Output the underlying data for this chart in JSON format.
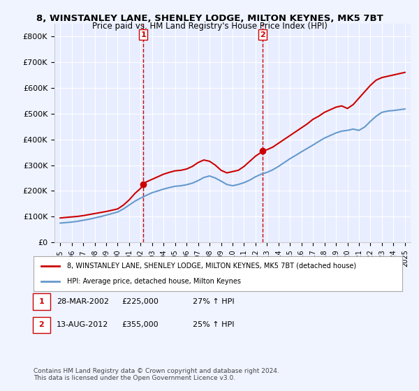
{
  "title": "8, WINSTANLEY LANE, SHENLEY LODGE, MILTON KEYNES, MK5 7BT",
  "subtitle": "Price paid vs. HM Land Registry's House Price Index (HPI)",
  "background_color": "#f0f4ff",
  "plot_bg_color": "#e8eeff",
  "legend_label_red": "8, WINSTANLEY LANE, SHENLEY LODGE, MILTON KEYNES, MK5 7BT (detached house)",
  "legend_label_blue": "HPI: Average price, detached house, Milton Keynes",
  "footnote": "Contains HM Land Registry data © Crown copyright and database right 2024.\nThis data is licensed under the Open Government Licence v3.0.",
  "transaction1_label": "1",
  "transaction1_date": "28-MAR-2002",
  "transaction1_price": "£225,000",
  "transaction1_hpi": "27% ↑ HPI",
  "transaction2_label": "2",
  "transaction2_date": "13-AUG-2012",
  "transaction2_price": "£355,000",
  "transaction2_hpi": "25% ↑ HPI",
  "ylim": [
    0,
    850000
  ],
  "yticks": [
    0,
    100000,
    200000,
    300000,
    400000,
    500000,
    600000,
    700000,
    800000
  ],
  "ytick_labels": [
    "£0",
    "£100K",
    "£200K",
    "£300K",
    "£400K",
    "£500K",
    "£600K",
    "£700K",
    "£800K"
  ],
  "xtick_years": [
    1995,
    1996,
    1997,
    1998,
    1999,
    2000,
    2001,
    2002,
    2003,
    2004,
    2005,
    2006,
    2007,
    2008,
    2009,
    2010,
    2011,
    2012,
    2013,
    2014,
    2015,
    2016,
    2017,
    2018,
    2019,
    2020,
    2021,
    2022,
    2023,
    2024,
    2025
  ],
  "vline1_x": 2002.23,
  "vline2_x": 2012.62,
  "dot1_x": 2002.23,
  "dot1_y": 225000,
  "dot2_x": 2012.62,
  "dot2_y": 355000,
  "red_line_color": "#cc0000",
  "blue_line_color": "#6699cc",
  "dot_color": "#cc0000",
  "vline_color": "#cc0000",
  "red_x": [
    1995.0,
    1995.5,
    1996.0,
    1996.5,
    1997.0,
    1997.5,
    1998.0,
    1998.5,
    1999.0,
    1999.5,
    2000.0,
    2000.5,
    2001.0,
    2001.5,
    2002.0,
    2002.23,
    2002.5,
    2003.0,
    2003.5,
    2004.0,
    2004.5,
    2005.0,
    2005.5,
    2006.0,
    2006.5,
    2007.0,
    2007.5,
    2008.0,
    2008.5,
    2009.0,
    2009.5,
    2010.0,
    2010.5,
    2011.0,
    2011.5,
    2012.0,
    2012.5,
    2012.62,
    2013.0,
    2013.5,
    2014.0,
    2014.5,
    2015.0,
    2015.5,
    2016.0,
    2016.5,
    2017.0,
    2017.5,
    2018.0,
    2018.5,
    2019.0,
    2019.5,
    2020.0,
    2020.5,
    2021.0,
    2021.5,
    2022.0,
    2022.5,
    2023.0,
    2023.5,
    2024.0,
    2024.5,
    2025.0
  ],
  "red_y": [
    95000,
    97000,
    99000,
    101000,
    104000,
    108000,
    112000,
    116000,
    120000,
    125000,
    130000,
    145000,
    165000,
    190000,
    210000,
    225000,
    235000,
    245000,
    255000,
    265000,
    272000,
    278000,
    280000,
    285000,
    295000,
    310000,
    320000,
    315000,
    300000,
    280000,
    270000,
    275000,
    280000,
    295000,
    315000,
    335000,
    350000,
    355000,
    360000,
    370000,
    385000,
    400000,
    415000,
    430000,
    445000,
    460000,
    478000,
    490000,
    505000,
    515000,
    525000,
    530000,
    520000,
    535000,
    560000,
    585000,
    610000,
    630000,
    640000,
    645000,
    650000,
    655000,
    660000
  ],
  "blue_x": [
    1995.0,
    1995.5,
    1996.0,
    1996.5,
    1997.0,
    1997.5,
    1998.0,
    1998.5,
    1999.0,
    1999.5,
    2000.0,
    2000.5,
    2001.0,
    2001.5,
    2002.0,
    2002.5,
    2003.0,
    2003.5,
    2004.0,
    2004.5,
    2005.0,
    2005.5,
    2006.0,
    2006.5,
    2007.0,
    2007.5,
    2008.0,
    2008.5,
    2009.0,
    2009.5,
    2010.0,
    2010.5,
    2011.0,
    2011.5,
    2012.0,
    2012.5,
    2013.0,
    2013.5,
    2014.0,
    2014.5,
    2015.0,
    2015.5,
    2016.0,
    2016.5,
    2017.0,
    2017.5,
    2018.0,
    2018.5,
    2019.0,
    2019.5,
    2020.0,
    2020.5,
    2021.0,
    2021.5,
    2022.0,
    2022.5,
    2023.0,
    2023.5,
    2024.0,
    2024.5,
    2025.0
  ],
  "blue_y": [
    75000,
    77000,
    79000,
    82000,
    86000,
    90000,
    95000,
    100000,
    106000,
    112000,
    118000,
    130000,
    145000,
    160000,
    172000,
    183000,
    193000,
    200000,
    207000,
    213000,
    218000,
    220000,
    224000,
    230000,
    240000,
    252000,
    258000,
    250000,
    238000,
    225000,
    220000,
    225000,
    232000,
    242000,
    255000,
    265000,
    272000,
    282000,
    295000,
    310000,
    325000,
    338000,
    352000,
    365000,
    378000,
    392000,
    405000,
    415000,
    425000,
    432000,
    435000,
    440000,
    435000,
    448000,
    470000,
    490000,
    505000,
    510000,
    512000,
    515000,
    518000
  ]
}
